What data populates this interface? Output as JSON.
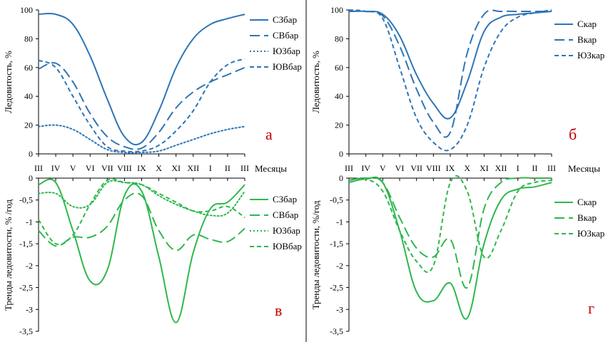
{
  "chart_data": [
    {
      "panel_label": "а",
      "type": "line",
      "ylabel": "Ледовитость, %",
      "xlabel": "Месяцы",
      "ylim": [
        0,
        100
      ],
      "yticks": [
        "0",
        "20",
        "40",
        "60",
        "80",
        "100"
      ],
      "categories": [
        "III",
        "IV",
        "V",
        "VI",
        "VII",
        "VIII",
        "IX",
        "X",
        "XI",
        "XII",
        "I",
        "II",
        "III"
      ],
      "legend": "right",
      "colors": {
        "line": "#2e75b6"
      },
      "series": [
        {
          "name": "СЗбар",
          "dash": "solid",
          "values": [
            97,
            97,
            90,
            68,
            38,
            12,
            8,
            30,
            60,
            80,
            90,
            94,
            97
          ]
        },
        {
          "name": "СВбар",
          "dash": "long",
          "values": [
            59,
            63,
            50,
            28,
            12,
            5,
            4,
            15,
            32,
            43,
            50,
            55,
            60
          ]
        },
        {
          "name": "ЮЗбар",
          "dash": "dot",
          "values": [
            19,
            20,
            17,
            10,
            3,
            1,
            1,
            2,
            6,
            10,
            14,
            17,
            19
          ]
        },
        {
          "name": "ЮВбар",
          "dash": "short",
          "values": [
            65,
            60,
            40,
            20,
            5,
            2,
            2,
            6,
            16,
            30,
            50,
            62,
            66
          ]
        }
      ]
    },
    {
      "panel_label": "б",
      "type": "line",
      "ylabel": "Ледовитость, %",
      "xlabel": "Месяцы",
      "ylim": [
        0,
        100
      ],
      "yticks": [
        "0",
        "20",
        "40",
        "60",
        "80",
        "100"
      ],
      "categories": [
        "III",
        "IV",
        "V",
        "VI",
        "VII",
        "VIII",
        "IX",
        "X",
        "XI",
        "XII",
        "I",
        "II",
        "III"
      ],
      "legend": "right",
      "colors": {
        "line": "#2e75b6"
      },
      "series": [
        {
          "name": "Скар",
          "dash": "solid",
          "values": [
            99,
            99,
            97,
            82,
            55,
            35,
            25,
            50,
            85,
            95,
            97,
            98,
            99
          ]
        },
        {
          "name": "Вкар",
          "dash": "long",
          "values": [
            99,
            99,
            96,
            75,
            45,
            22,
            15,
            70,
            97,
            99,
            99,
            99,
            99
          ]
        },
        {
          "name": "ЮЗкар",
          "dash": "short",
          "values": [
            100,
            99,
            94,
            60,
            25,
            8,
            3,
            20,
            60,
            85,
            95,
            98,
            100
          ]
        }
      ]
    },
    {
      "panel_label": "в",
      "type": "line",
      "ylabel": "Тренды ледовитости, % /год",
      "xlabel": "",
      "ylim": [
        -3.5,
        0
      ],
      "yticks": [
        "0",
        "-0,5",
        "-1",
        "-1,5",
        "-2",
        "-2,5",
        "-3",
        "-3,5"
      ],
      "categories": [
        "III",
        "IV",
        "V",
        "VI",
        "VII",
        "VIII",
        "IX",
        "X",
        "XI",
        "XII",
        "I",
        "II",
        "III"
      ],
      "legend": "right",
      "colors": {
        "line": "#2db84d"
      },
      "series": [
        {
          "name": "СЗбар",
          "dash": "solid",
          "values": [
            -0.15,
            -0.1,
            -1.2,
            -2.35,
            -2.1,
            -0.4,
            -0.3,
            -1.8,
            -3.3,
            -1.7,
            -0.7,
            -0.55,
            -0.15
          ]
        },
        {
          "name": "СВбар",
          "dash": "long",
          "values": [
            -1.2,
            -1.55,
            -1.35,
            -1.35,
            -1.1,
            -0.5,
            -0.4,
            -1.2,
            -1.65,
            -1.3,
            -1.4,
            -1.45,
            -1.15
          ]
        },
        {
          "name": "ЮЗбар",
          "dash": "dot",
          "values": [
            -0.35,
            -0.35,
            -0.65,
            -0.6,
            -0.1,
            -0.1,
            -0.15,
            -0.4,
            -0.6,
            -0.75,
            -0.85,
            -0.8,
            -0.3
          ]
        },
        {
          "name": "ЮВбар",
          "dash": "short",
          "values": [
            -0.95,
            -1.5,
            -1.3,
            -0.6,
            -0.05,
            -0.1,
            -0.15,
            -0.35,
            -0.55,
            -0.75,
            -0.75,
            -0.65,
            -0.9
          ]
        }
      ]
    },
    {
      "panel_label": "г",
      "type": "line",
      "ylabel": "Тренды ледовитости, %/год",
      "xlabel": "",
      "ylim": [
        -3.5,
        0
      ],
      "yticks": [
        "0",
        "-0,5",
        "-1",
        "-1,5",
        "-2",
        "-2,5",
        "-3",
        "-3,5"
      ],
      "categories": [
        "III",
        "IV",
        "V",
        "VI",
        "VII",
        "VIII",
        "IX",
        "X",
        "XI",
        "XII",
        "I",
        "II",
        "III"
      ],
      "legend": "right",
      "colors": {
        "line": "#2db84d"
      },
      "series": [
        {
          "name": "Скар",
          "dash": "solid",
          "values": [
            -0.1,
            -0.02,
            -0.1,
            -1.2,
            -2.6,
            -2.8,
            -2.4,
            -3.2,
            -1.5,
            -0.5,
            -0.25,
            -0.2,
            -0.1
          ]
        },
        {
          "name": "Вкар",
          "dash": "long",
          "values": [
            -0.05,
            0,
            -0.1,
            -0.9,
            -1.6,
            -1.8,
            -1.4,
            -2.5,
            -0.7,
            -0.1,
            0,
            0,
            0
          ]
        },
        {
          "name": "ЮЗкар",
          "dash": "short",
          "values": [
            -0.05,
            -0.02,
            -0.3,
            -1.2,
            -1.9,
            -2.0,
            -0.1,
            -0.3,
            -1.8,
            -1.2,
            -0.3,
            -0.1,
            -0.05
          ]
        }
      ]
    }
  ]
}
